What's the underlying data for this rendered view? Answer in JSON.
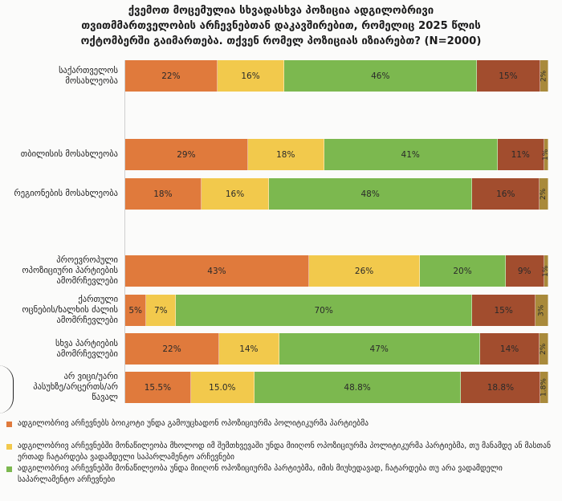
{
  "title_lines": [
    "ქვემოთ მოცემულია სხვადასხვა პოზიცია ადგილობრივი",
    "თვითმმართველობის არჩევნებთან დაკავშირებით, რომელიც 2025 წლის",
    "ოქტომბერში გაიმართება. თქვენ რომელ პოზიციას იზიარებთ? (N=2000)"
  ],
  "colors": [
    "#e07a3c",
    "#f2c94c",
    "#7cb84f",
    "#a24d2e",
    "#a98a3b"
  ],
  "chart_data": {
    "type": "bar",
    "orientation": "horizontal",
    "stacked": true,
    "categories": [
      [
        "საქართველოს",
        "მოსახლეობა"
      ],
      [
        "თბილისის მოსახლეობა"
      ],
      [
        "რეგიონების მოსახლეობა"
      ],
      [
        "პროევროპული",
        "ოპოზიციური პარტიების",
        "ამომრჩევლები"
      ],
      [
        "ქართული",
        "ოცნების/ხალხის ძალის",
        "ამომრჩევლები"
      ],
      [
        "სხვა პარტიების",
        "ამომრჩევლები"
      ],
      [
        "არ ვიცი/უარი",
        "პასუხზე/არცერთს/არ",
        "წავალ"
      ]
    ],
    "series": [
      {
        "name": "ადგილობრივ არჩევნებს ბოიკოტი უნდა გამოუცხადონ ოპოზიციურმა პოლიტიკურმა პარტიებმა",
        "values": [
          22,
          29,
          18,
          43,
          5,
          22,
          15.5
        ],
        "labels": [
          "22%",
          "29%",
          "18%",
          "43%",
          "5%",
          "22%",
          "15.5%"
        ]
      },
      {
        "name": "ადგილობრივ არჩევნებში მონაწილეობა მხოლოდ იმ შემთხვევაში უნდა მიიღონ ოპოზიციურმა პოლიტიკურმა პარტიებმა, თუ მანამდე ან მასთან ერთად ჩატარდება ვადამდელი საპარლამენტო არჩევნები",
        "values": [
          16,
          18,
          16,
          26,
          7,
          14,
          15.0
        ],
        "labels": [
          "16%",
          "18%",
          "16%",
          "26%",
          "7%",
          "14%",
          "15.0%"
        ]
      },
      {
        "name": "ადგილობრივ არჩევნებში მონაწილეობა უნდა მიიღონ ოპოზიციურმა პარტიებმა, იმის მიუხედავად, ჩატარდება თუ არა ვადამდელი საპარლამენტო არჩევნები",
        "values": [
          46,
          41,
          48,
          20,
          70,
          47,
          48.8
        ],
        "labels": [
          "46%",
          "41%",
          "48%",
          "20%",
          "70%",
          "47%",
          "48.8%"
        ]
      },
      {
        "name": "",
        "values": [
          15,
          11,
          16,
          9,
          15,
          14,
          18.8
        ],
        "labels": [
          "15%",
          "11%",
          "16%",
          "9%",
          "15%",
          "14%",
          "18.8%"
        ]
      },
      {
        "name": "",
        "values": [
          2,
          1,
          2,
          1,
          3,
          2,
          1.8
        ],
        "labels": [
          "2%",
          "1%",
          "2%",
          "1%",
          "3%",
          "2%",
          "1.8%"
        ]
      }
    ],
    "xlim": [
      0,
      100
    ]
  }
}
